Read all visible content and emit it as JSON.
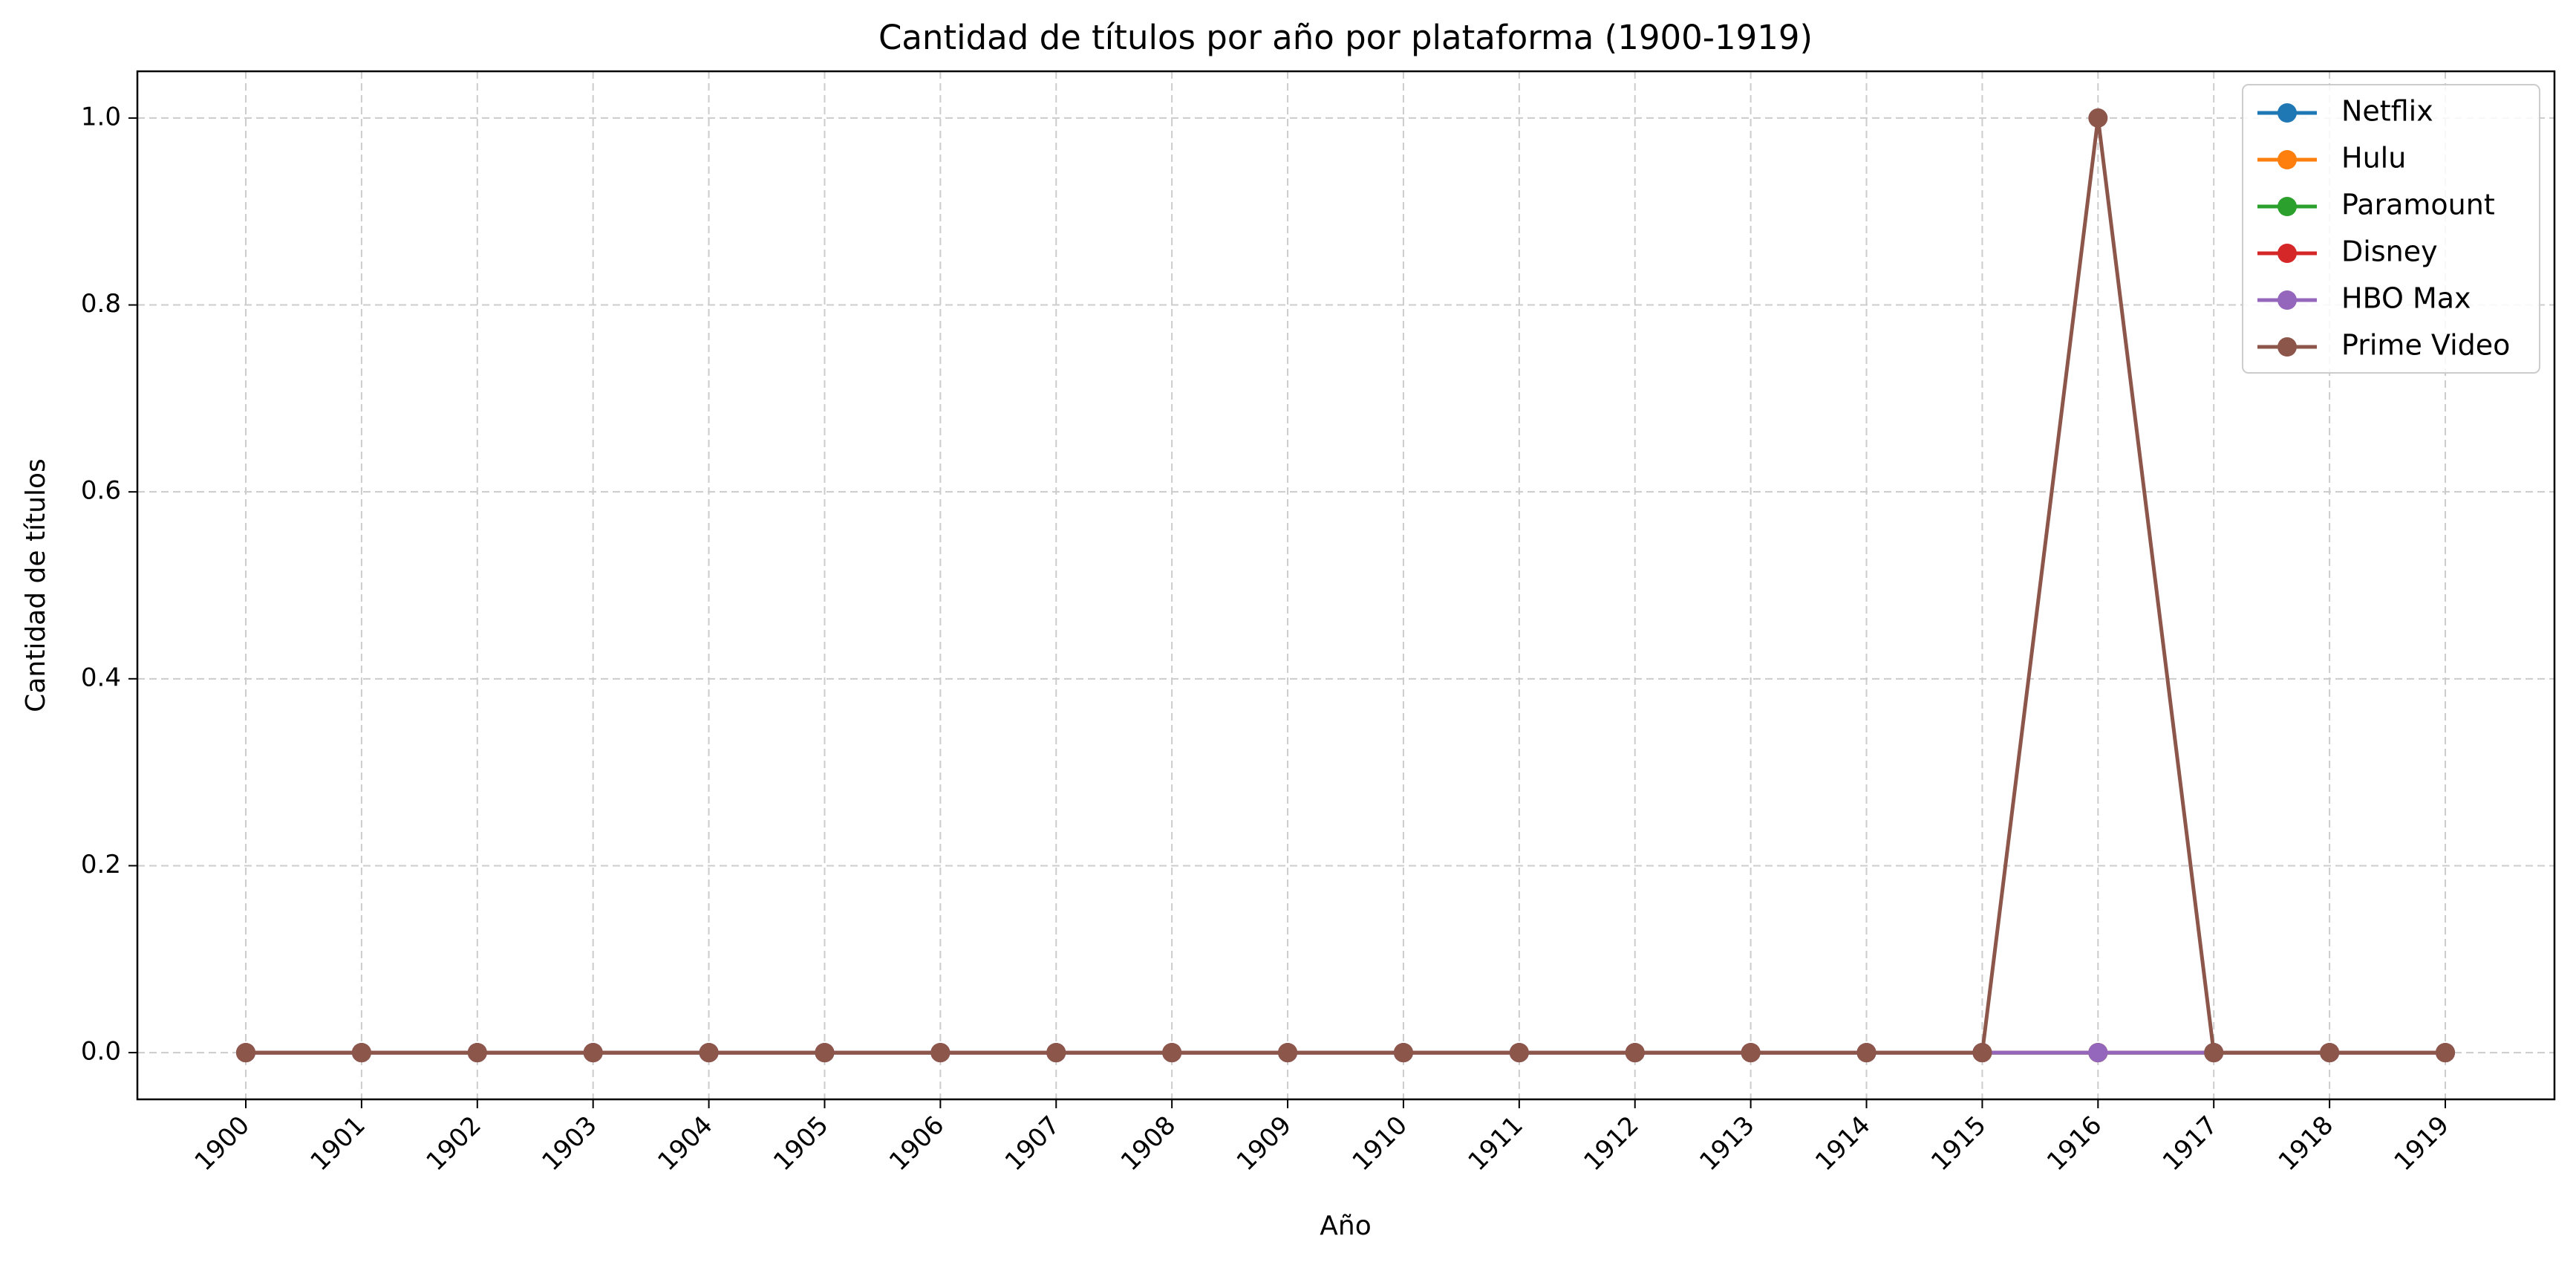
{
  "chart_data": {
    "type": "line",
    "title": "Cantidad de títulos por año por plataforma (1900-1919)",
    "xlabel": "Año",
    "ylabel": "Cantidad de títulos",
    "x": [
      "1900",
      "1901",
      "1902",
      "1903",
      "1904",
      "1905",
      "1906",
      "1907",
      "1908",
      "1909",
      "1910",
      "1911",
      "1912",
      "1913",
      "1914",
      "1915",
      "1916",
      "1917",
      "1918",
      "1919"
    ],
    "ylim": [
      -0.05,
      1.05
    ],
    "yticks": [
      "0.0",
      "0.2",
      "0.4",
      "0.6",
      "0.8",
      "1.0"
    ],
    "grid": true,
    "legend_position": "top-right",
    "series": [
      {
        "name": "Netflix",
        "color": "#1f77b4",
        "values": [
          0,
          0,
          0,
          0,
          0,
          0,
          0,
          0,
          0,
          0,
          0,
          0,
          0,
          0,
          0,
          0,
          0,
          0,
          0,
          0
        ]
      },
      {
        "name": "Hulu",
        "color": "#ff7f0e",
        "values": [
          0,
          0,
          0,
          0,
          0,
          0,
          0,
          0,
          0,
          0,
          0,
          0,
          0,
          0,
          0,
          0,
          0,
          0,
          0,
          0
        ]
      },
      {
        "name": "Paramount",
        "color": "#2ca02c",
        "values": [
          0,
          0,
          0,
          0,
          0,
          0,
          0,
          0,
          0,
          0,
          0,
          0,
          0,
          0,
          0,
          0,
          0,
          0,
          0,
          0
        ]
      },
      {
        "name": "Disney",
        "color": "#d62728",
        "values": [
          0,
          0,
          0,
          0,
          0,
          0,
          0,
          0,
          0,
          0,
          0,
          0,
          0,
          0,
          0,
          0,
          0,
          0,
          0,
          0
        ]
      },
      {
        "name": "HBO Max",
        "color": "#9467bd",
        "values": [
          0,
          0,
          0,
          0,
          0,
          0,
          0,
          0,
          0,
          0,
          0,
          0,
          0,
          0,
          0,
          0,
          0,
          0,
          0,
          0
        ]
      },
      {
        "name": "Prime Video",
        "color": "#8c564b",
        "values": [
          0,
          0,
          0,
          0,
          0,
          0,
          0,
          0,
          0,
          0,
          0,
          0,
          0,
          0,
          0,
          0,
          1,
          0,
          0,
          0
        ]
      }
    ]
  }
}
